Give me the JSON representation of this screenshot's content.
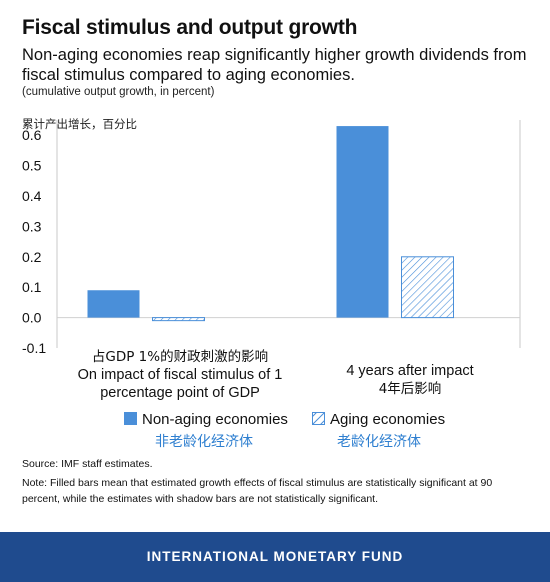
{
  "header": {
    "title": "Fiscal stimulus and output growth",
    "subtitle": "Non-aging economies reap significantly higher growth dividends from fiscal stimulus compared to aging economies.",
    "unit": "(cumulative output growth, in percent)",
    "ylabel_cn": "累计产出增长，百分比"
  },
  "colors": {
    "non_aging": "#4a8fd9",
    "aging_hatch": "#4a8fd9",
    "footer_bg": "#1f4b8e",
    "legend_cn": "#2e7fd0"
  },
  "chart_data": {
    "type": "bar",
    "categories": [
      "On impact of fiscal stimulus of 1 percentage point of GDP",
      "4 years after impact"
    ],
    "categories_cn": [
      "占GDP 1%的财政刺激的影响",
      "4年后影响"
    ],
    "series": [
      {
        "name": "Non-aging economies",
        "name_cn": "非老龄化经济体",
        "fill": "solid",
        "values": [
          0.09,
          0.63
        ]
      },
      {
        "name": "Aging economies",
        "name_cn": "老龄化经济体",
        "fill": "hatched",
        "values": [
          -0.01,
          0.2
        ]
      }
    ],
    "ylim": [
      -0.1,
      0.65
    ],
    "yticks": [
      "-0.1",
      "0.0",
      "0.1",
      "0.2",
      "0.3",
      "0.4",
      "0.5",
      "0.6"
    ],
    "grid": false
  },
  "footnotes": {
    "source": "Source: IMF staff estimates.",
    "note": "Note: Filled bars mean that estimated growth effects of fiscal stimulus are statistically significant at 90 percent, while the estimates with shadow bars are not statistically significant."
  },
  "footer": {
    "text": "INTERNATIONAL MONETARY FUND"
  }
}
